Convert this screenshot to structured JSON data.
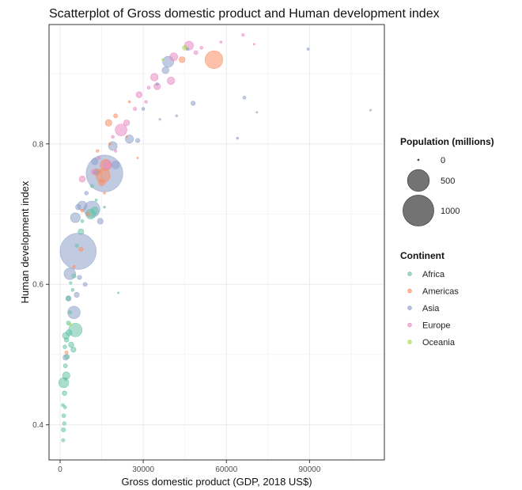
{
  "chart_data": {
    "type": "scatter",
    "title": "Scatterplot of Gross domestic product and Human development index",
    "xlabel": "Gross domestic product (GDP, 2018 US$)",
    "ylabel": "Human development index",
    "xlim": [
      -4000,
      117000
    ],
    "ylim": [
      0.35,
      0.97
    ],
    "x_ticks": [
      0,
      30000,
      60000,
      90000
    ],
    "x_tick_labels": [
      "0",
      "30000",
      "60000",
      "90000"
    ],
    "y_ticks": [
      0.4,
      0.6,
      0.8
    ],
    "y_tick_labels": [
      "0.4",
      "0.6",
      "0.8"
    ],
    "grid": true,
    "size_legend": {
      "title": "Population (millions)",
      "entries": [
        {
          "label": "0",
          "value": 0
        },
        {
          "label": "500",
          "value": 500
        },
        {
          "label": "1000",
          "value": 1000
        }
      ]
    },
    "color_legend": {
      "title": "Continent",
      "entries": [
        {
          "label": "Africa",
          "color": "#66c2a5"
        },
        {
          "label": "Americas",
          "color": "#fc8d62"
        },
        {
          "label": "Asia",
          "color": "#8da0cb"
        },
        {
          "label": "Europe",
          "color": "#e78ac3"
        },
        {
          "label": "Oceania",
          "color": "#a6d854"
        }
      ]
    },
    "legend_position": "right",
    "series": [
      {
        "name": "Africa",
        "color": "#66c2a5",
        "points": [
          {
            "x": 1100,
            "y": 0.378,
            "pop": 12
          },
          {
            "x": 1200,
            "y": 0.393,
            "pop": 20
          },
          {
            "x": 1500,
            "y": 0.402,
            "pop": 14
          },
          {
            "x": 1300,
            "y": 0.413,
            "pop": 16
          },
          {
            "x": 1800,
            "y": 0.425,
            "pop": 10
          },
          {
            "x": 1000,
            "y": 0.428,
            "pop": 11
          },
          {
            "x": 1600,
            "y": 0.445,
            "pop": 24
          },
          {
            "x": 1300,
            "y": 0.46,
            "pop": 105
          },
          {
            "x": 2200,
            "y": 0.47,
            "pop": 60
          },
          {
            "x": 1900,
            "y": 0.484,
            "pop": 18
          },
          {
            "x": 2500,
            "y": 0.497,
            "pop": 25
          },
          {
            "x": 1700,
            "y": 0.511,
            "pop": 15
          },
          {
            "x": 4000,
            "y": 0.514,
            "pop": 30
          },
          {
            "x": 2300,
            "y": 0.521,
            "pop": 22
          },
          {
            "x": 2100,
            "y": 0.527,
            "pop": 50
          },
          {
            "x": 3200,
            "y": 0.531,
            "pop": 40
          },
          {
            "x": 5500,
            "y": 0.535,
            "pop": 190
          },
          {
            "x": 4800,
            "y": 0.507,
            "pop": 28
          },
          {
            "x": 3000,
            "y": 0.545,
            "pop": 18
          },
          {
            "x": 3600,
            "y": 0.56,
            "pop": 12
          },
          {
            "x": 3000,
            "y": 0.58,
            "pop": 20
          },
          {
            "x": 4500,
            "y": 0.592,
            "pop": 10
          },
          {
            "x": 3800,
            "y": 0.602,
            "pop": 8
          },
          {
            "x": 5000,
            "y": 0.612,
            "pop": 18
          },
          {
            "x": 6000,
            "y": 0.655,
            "pop": 12
          },
          {
            "x": 7500,
            "y": 0.675,
            "pop": 35
          },
          {
            "x": 8000,
            "y": 0.69,
            "pop": 10
          },
          {
            "x": 11000,
            "y": 0.7,
            "pop": 100
          },
          {
            "x": 12500,
            "y": 0.705,
            "pop": 60
          },
          {
            "x": 13000,
            "y": 0.72,
            "pop": 6
          },
          {
            "x": 11500,
            "y": 0.74,
            "pop": 12
          },
          {
            "x": 16000,
            "y": 0.71,
            "pop": 5
          },
          {
            "x": 21000,
            "y": 0.588,
            "pop": 2
          },
          {
            "x": 2000,
            "y": 0.465,
            "pop": 8
          }
        ]
      },
      {
        "name": "Americas",
        "color": "#fc8d62",
        "points": [
          {
            "x": 2300,
            "y": 0.503,
            "pop": 11
          },
          {
            "x": 5000,
            "y": 0.625,
            "pop": 7
          },
          {
            "x": 7500,
            "y": 0.65,
            "pop": 17
          },
          {
            "x": 8000,
            "y": 0.705,
            "pop": 10
          },
          {
            "x": 10000,
            "y": 0.7,
            "pop": 12
          },
          {
            "x": 13000,
            "y": 0.76,
            "pop": 50
          },
          {
            "x": 15000,
            "y": 0.745,
            "pop": 45
          },
          {
            "x": 14500,
            "y": 0.76,
            "pop": 8
          },
          {
            "x": 16500,
            "y": 0.77,
            "pop": 130
          },
          {
            "x": 15500,
            "y": 0.755,
            "pop": 210
          },
          {
            "x": 13500,
            "y": 0.79,
            "pop": 8
          },
          {
            "x": 17500,
            "y": 0.83,
            "pop": 45
          },
          {
            "x": 20000,
            "y": 0.84,
            "pop": 18
          },
          {
            "x": 24000,
            "y": 0.81,
            "pop": 4
          },
          {
            "x": 28000,
            "y": 0.78,
            "pop": 3
          },
          {
            "x": 25000,
            "y": 0.86,
            "pop": 5
          },
          {
            "x": 44000,
            "y": 0.92,
            "pop": 37
          },
          {
            "x": 55500,
            "y": 0.92,
            "pop": 330
          },
          {
            "x": 18000,
            "y": 0.8,
            "pop": 6
          },
          {
            "x": 16000,
            "y": 0.73,
            "pop": 5
          }
        ]
      },
      {
        "name": "Asia",
        "color": "#8da0cb",
        "points": [
          {
            "x": 2000,
            "y": 0.496,
            "pop": 32
          },
          {
            "x": 5000,
            "y": 0.56,
            "pop": 165
          },
          {
            "x": 3500,
            "y": 0.615,
            "pop": 140
          },
          {
            "x": 6500,
            "y": 0.647,
            "pop": 1360
          },
          {
            "x": 3000,
            "y": 0.58,
            "pop": 30
          },
          {
            "x": 6000,
            "y": 0.585,
            "pop": 28
          },
          {
            "x": 7000,
            "y": 0.61,
            "pop": 20
          },
          {
            "x": 9000,
            "y": 0.6,
            "pop": 17
          },
          {
            "x": 5500,
            "y": 0.695,
            "pop": 100
          },
          {
            "x": 6500,
            "y": 0.71,
            "pop": 30
          },
          {
            "x": 8000,
            "y": 0.712,
            "pop": 90
          },
          {
            "x": 11500,
            "y": 0.707,
            "pop": 270
          },
          {
            "x": 14500,
            "y": 0.69,
            "pop": 35
          },
          {
            "x": 16000,
            "y": 0.758,
            "pop": 1400
          },
          {
            "x": 13000,
            "y": 0.76,
            "pop": 22
          },
          {
            "x": 12500,
            "y": 0.775,
            "pop": 45
          },
          {
            "x": 19000,
            "y": 0.797,
            "pop": 80
          },
          {
            "x": 25000,
            "y": 0.807,
            "pop": 70
          },
          {
            "x": 28000,
            "y": 0.805,
            "pop": 20
          },
          {
            "x": 30000,
            "y": 0.85,
            "pop": 10
          },
          {
            "x": 36000,
            "y": 0.835,
            "pop": 4
          },
          {
            "x": 42000,
            "y": 0.84,
            "pop": 5
          },
          {
            "x": 48000,
            "y": 0.858,
            "pop": 20
          },
          {
            "x": 38000,
            "y": 0.905,
            "pop": 51
          },
          {
            "x": 39000,
            "y": 0.917,
            "pop": 126
          },
          {
            "x": 46000,
            "y": 0.935,
            "pop": 9
          },
          {
            "x": 64000,
            "y": 0.808,
            "pop": 5
          },
          {
            "x": 66500,
            "y": 0.866,
            "pop": 10
          },
          {
            "x": 71000,
            "y": 0.845,
            "pop": 3
          },
          {
            "x": 89500,
            "y": 0.935,
            "pop": 6
          },
          {
            "x": 112000,
            "y": 0.848,
            "pop": 3
          },
          {
            "x": 20000,
            "y": 0.77,
            "pop": 65
          },
          {
            "x": 9500,
            "y": 0.73,
            "pop": 15
          },
          {
            "x": 35000,
            "y": 0.885,
            "pop": 8
          }
        ]
      },
      {
        "name": "Europe",
        "color": "#e78ac3",
        "points": [
          {
            "x": 8000,
            "y": 0.75,
            "pop": 40
          },
          {
            "x": 12000,
            "y": 0.76,
            "pop": 20
          },
          {
            "x": 14000,
            "y": 0.78,
            "pop": 10
          },
          {
            "x": 17000,
            "y": 0.77,
            "pop": 80
          },
          {
            "x": 19000,
            "y": 0.81,
            "pop": 10
          },
          {
            "x": 22000,
            "y": 0.82,
            "pop": 145
          },
          {
            "x": 24000,
            "y": 0.83,
            "pop": 38
          },
          {
            "x": 27000,
            "y": 0.85,
            "pop": 12
          },
          {
            "x": 28500,
            "y": 0.87,
            "pop": 40
          },
          {
            "x": 32000,
            "y": 0.88,
            "pop": 10
          },
          {
            "x": 35000,
            "y": 0.882,
            "pop": 47
          },
          {
            "x": 34000,
            "y": 0.895,
            "pop": 60
          },
          {
            "x": 40000,
            "y": 0.89,
            "pop": 60
          },
          {
            "x": 41000,
            "y": 0.924,
            "pop": 67
          },
          {
            "x": 46500,
            "y": 0.94,
            "pop": 83
          },
          {
            "x": 49000,
            "y": 0.93,
            "pop": 17
          },
          {
            "x": 51000,
            "y": 0.937,
            "pop": 10
          },
          {
            "x": 58000,
            "y": 0.945,
            "pop": 5
          },
          {
            "x": 66000,
            "y": 0.955,
            "pop": 8
          },
          {
            "x": 70000,
            "y": 0.942,
            "pop": 3
          },
          {
            "x": 31000,
            "y": 0.86,
            "pop": 9
          },
          {
            "x": 20000,
            "y": 0.79,
            "pop": 7
          }
        ]
      },
      {
        "name": "Oceania",
        "color": "#a6d854",
        "points": [
          {
            "x": 3600,
            "y": 0.543,
            "pop": 8
          },
          {
            "x": 37000,
            "y": 0.92,
            "pop": 4
          },
          {
            "x": 45000,
            "y": 0.937,
            "pop": 24
          }
        ]
      }
    ]
  }
}
